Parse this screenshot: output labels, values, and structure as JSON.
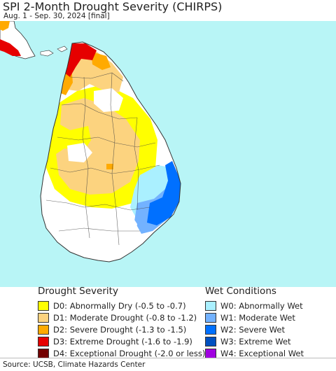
{
  "header": {
    "title": "SPI 2-Month Drought Severity (CHIRPS)",
    "subtitle": "Aug. 1 - Sep. 30, 2024 [final]"
  },
  "map": {
    "ocean_color": "#b8f5f6",
    "land_color": "#ffffff",
    "boundary_color": "#333333"
  },
  "legend": {
    "drought": {
      "heading": "Drought Severity",
      "items": [
        {
          "label": "D0: Abnormally Dry (-0.5 to -0.7)",
          "color": "#ffff00"
        },
        {
          "label": "D1: Moderate Drought (-0.8 to -1.2)",
          "color": "#fcd37f"
        },
        {
          "label": "D2: Severe Drought (-1.3 to -1.5)",
          "color": "#ffaa00"
        },
        {
          "label": "D3: Extreme Drought (-1.6 to -1.9)",
          "color": "#e60000"
        },
        {
          "label": "D4: Exceptional Drought (-2.0 or less)",
          "color": "#730000"
        }
      ]
    },
    "wet": {
      "heading": "Wet Conditions",
      "items": [
        {
          "label": "W0: Abnormally Wet",
          "color": "#aaf0ff"
        },
        {
          "label": "W1: Moderate Wet",
          "color": "#73b2ff"
        },
        {
          "label": "W2: Severe Wet",
          "color": "#0070ff"
        },
        {
          "label": "W3: Extreme Wet",
          "color": "#0050c0"
        },
        {
          "label": "W4: Exceptional Wet",
          "color": "#a000e0"
        }
      ]
    }
  },
  "footer": {
    "source": "Source: UCSB, Climate Hazards Center"
  }
}
